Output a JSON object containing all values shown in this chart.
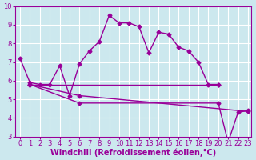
{
  "xlabel": "Windchill (Refroidissement éolien,°C)",
  "background_color": "#cce8ee",
  "line_color": "#990099",
  "grid_color": "#ffffff",
  "xlim": [
    -0.5,
    23.3
  ],
  "ylim": [
    3,
    10
  ],
  "xticks": [
    0,
    1,
    2,
    3,
    4,
    5,
    6,
    7,
    8,
    9,
    10,
    11,
    12,
    13,
    14,
    15,
    16,
    17,
    18,
    19,
    20,
    21,
    22,
    23
  ],
  "yticks": [
    3,
    4,
    5,
    6,
    7,
    8,
    9,
    10
  ],
  "series": [
    {
      "x": [
        0,
        1,
        2,
        3,
        4,
        5,
        6,
        7,
        8,
        9,
        10,
        11,
        12,
        13,
        14,
        15,
        16,
        17,
        18,
        19,
        20
      ],
      "y": [
        7.2,
        5.9,
        5.8,
        5.8,
        6.8,
        5.2,
        6.9,
        7.6,
        8.1,
        9.5,
        9.1,
        9.1,
        8.9,
        7.5,
        8.6,
        8.5,
        7.8,
        7.6,
        7.0,
        5.8,
        5.8
      ]
    },
    {
      "x": [
        1,
        20
      ],
      "y": [
        5.8,
        5.8
      ]
    },
    {
      "x": [
        1,
        6,
        23
      ],
      "y": [
        5.8,
        5.2,
        4.35
      ]
    },
    {
      "x": [
        1,
        6,
        20,
        21,
        22,
        23
      ],
      "y": [
        5.8,
        4.8,
        4.8,
        2.7,
        4.3,
        4.4
      ]
    }
  ],
  "marker": "D",
  "marker_size": 2.5,
  "line_width": 1.0,
  "xlabel_fontsize": 7,
  "tick_fontsize": 6
}
